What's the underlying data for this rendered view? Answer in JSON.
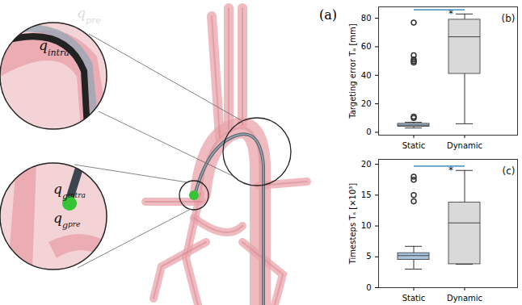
{
  "chart_data": [
    {
      "type": "box",
      "title": "(b)",
      "y_label": "Targeting error Tₐ [mm]",
      "categories": [
        "Static",
        "Dynamic"
      ],
      "boxes": [
        {
          "min": 3,
          "q1": 4,
          "median": 5,
          "q3": 6,
          "max": 7,
          "outliers": [
            77,
            54,
            51,
            50,
            49,
            11,
            10
          ]
        },
        {
          "min": 6,
          "q1": 41,
          "median": 67,
          "q3": 79,
          "max": 83,
          "outliers": []
        }
      ],
      "colors": [
        "#a9c3dc",
        "#d9d9d9"
      ],
      "ylim": [
        -2,
        88
      ],
      "yticks": [
        0,
        20,
        40,
        60,
        80
      ],
      "annotations": [
        {
          "text": "*",
          "from": "Static",
          "to": "Dynamic",
          "y": 86,
          "color": "#1f77b4"
        }
      ]
    },
    {
      "type": "box",
      "title": "(c)",
      "y_label": "Timesteps Tₛ [×10³]",
      "categories": [
        "Static",
        "Dynamic"
      ],
      "boxes": [
        {
          "min": 3,
          "q1": 4.5,
          "median": 5.2,
          "q3": 5.6,
          "max": 6.7,
          "outliers": [
            14,
            15,
            17.5,
            18
          ]
        },
        {
          "min": 3.8,
          "q1": 3.8,
          "median": 10.5,
          "q3": 13.8,
          "max": 19,
          "outliers": []
        }
      ],
      "colors": [
        "#a9c3dc",
        "#d9d9d9"
      ],
      "ylim": [
        0,
        20.8
      ],
      "yticks": [
        0,
        5,
        10,
        15,
        20
      ],
      "annotations": [
        {
          "text": "*",
          "from": "Static",
          "to": "Dynamic",
          "y": 19.7,
          "color": "#1f77b4"
        }
      ]
    }
  ],
  "panel_a": {
    "label": "(a)",
    "annotations": [
      {
        "text": "q",
        "subscript": "pre"
      },
      {
        "text": "q",
        "subscript": "intra"
      },
      {
        "text": "q",
        "subscript": "g",
        "subsubscript": "intra"
      },
      {
        "text": "q",
        "subscript": "g",
        "subsubscript": "pre"
      }
    ]
  }
}
